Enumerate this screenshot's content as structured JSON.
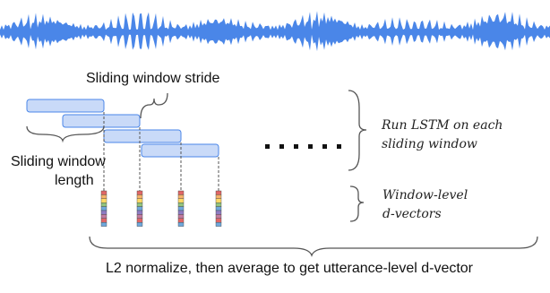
{
  "labels": {
    "stride": "Sliding window stride",
    "length_line1": "Sliding window",
    "length_line2": "length",
    "lstm_line1": "Run LSTM on each",
    "lstm_line2": "sliding window",
    "dvec_line1": "Window-level",
    "dvec_line2": "d-vectors",
    "bottom": "L2 normalize, then average to get utterance-level d-vector"
  },
  "colors": {
    "waveform": "#4a86e8",
    "window_fill": "#c9daf8",
    "window_stroke": "#4a86e8",
    "line": "#555555",
    "dots": "#111111"
  },
  "dvector_cell_colors": [
    "#e06666",
    "#f6b26b",
    "#ffd966",
    "#93c47d",
    "#6fa8dc",
    "#8e7cc3",
    "#c27ba0",
    "#e06666",
    "#6fa8dc"
  ],
  "window_count": 4,
  "dvector_count": 4
}
